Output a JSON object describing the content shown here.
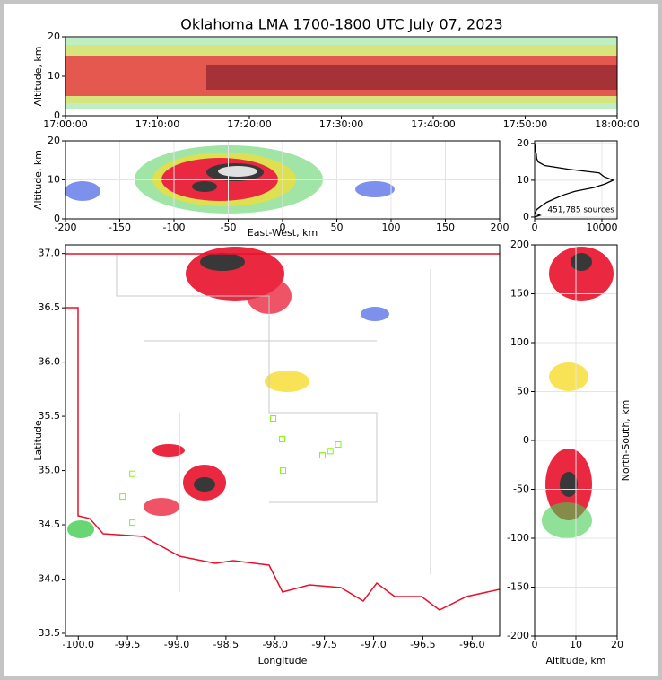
{
  "title": "Oklahoma LMA 1700-1800 UTC July 07, 2023",
  "chart_data": [
    {
      "type": "heatmap",
      "ylabel": "Altitude, km",
      "xticks": [
        "17:00:00",
        "17:10:00",
        "17:20:00",
        "17:30:00",
        "17:40:00",
        "17:50:00",
        "18:00:00"
      ],
      "ylim": [
        0,
        20
      ],
      "yticks": [
        0,
        10,
        20
      ],
      "grid": false
    },
    {
      "type": "heatmap",
      "xlabel": "East-West, km",
      "ylabel": "Altitude, km",
      "xlim": [
        -200,
        200
      ],
      "xticks": [
        -200,
        -150,
        -100,
        -50,
        0,
        50,
        100,
        150,
        200
      ],
      "ylim": [
        0,
        20
      ],
      "yticks": [
        0,
        10,
        20
      ],
      "grid": true
    },
    {
      "type": "line",
      "orientation": "horizontal",
      "annotation": "451,785 sources",
      "xlim": [
        0,
        12270
      ],
      "xticks": [
        0,
        10000
      ],
      "ylim": [
        -0.5,
        20.7
      ],
      "yticks": [
        0,
        10,
        20
      ],
      "grid": true,
      "series": [
        {
          "color": "#000000",
          "x": [
            0,
            0.5,
            1,
            2,
            3,
            4,
            5,
            6,
            7,
            8,
            9,
            10,
            11,
            12,
            13,
            14,
            15,
            16,
            17,
            18,
            19,
            20
          ],
          "values": [
            0,
            800,
            100,
            300,
            1000,
            1800,
            3000,
            4300,
            6000,
            8800,
            10500,
            11700,
            10300,
            9600,
            5000,
            1500,
            500,
            300,
            250,
            150,
            80,
            0
          ]
        }
      ]
    },
    {
      "type": "scatter",
      "xlabel": "Longitude",
      "ylabel": "Latitude",
      "xlim": [
        -100.13,
        -95.72
      ],
      "xticks": [
        {
          "value": -100,
          "label": "-100.0"
        },
        {
          "value": -99.5,
          "label": "-99.5"
        },
        {
          "value": -99,
          "label": "-99.0"
        },
        {
          "value": -98.5,
          "label": "-98.5"
        },
        {
          "value": -98,
          "label": "-98.0"
        },
        {
          "value": -97.5,
          "label": "-97.5"
        },
        {
          "value": -97,
          "label": "-97.0"
        },
        {
          "value": -96.5,
          "label": "-96.5"
        },
        {
          "value": -96,
          "label": "-96.0"
        }
      ],
      "ylim": [
        33.475,
        37.08
      ],
      "yticks": [
        33.5,
        {
          "value": 34,
          "label": "34.0"
        },
        34.5,
        {
          "value": 35,
          "label": "35.0"
        },
        35.5,
        {
          "value": 36,
          "label": "36.0"
        },
        36.5,
        {
          "value": 37,
          "label": "37.0"
        }
      ],
      "grid": false,
      "series": [
        {
          "color": "#7cfc00",
          "x": [
            -99.45,
            -99.55,
            -99.45,
            -98.02,
            -97.93,
            -97.92,
            -97.52,
            -97.44,
            -97.36
          ],
          "values": [
            34.97,
            34.76,
            34.52,
            35.48,
            35.29,
            35.0,
            35.14,
            35.18,
            35.24
          ]
        }
      ]
    },
    {
      "type": "heatmap",
      "xlabel": "Altitude, km",
      "ylabel": "North-South, km",
      "xlim": [
        0,
        20
      ],
      "xticks": [
        0,
        10,
        20
      ],
      "ylim": [
        -200,
        200
      ],
      "yticks": [
        -200,
        -150,
        -100,
        -50,
        0,
        50,
        100,
        150,
        200
      ],
      "grid": true
    }
  ]
}
